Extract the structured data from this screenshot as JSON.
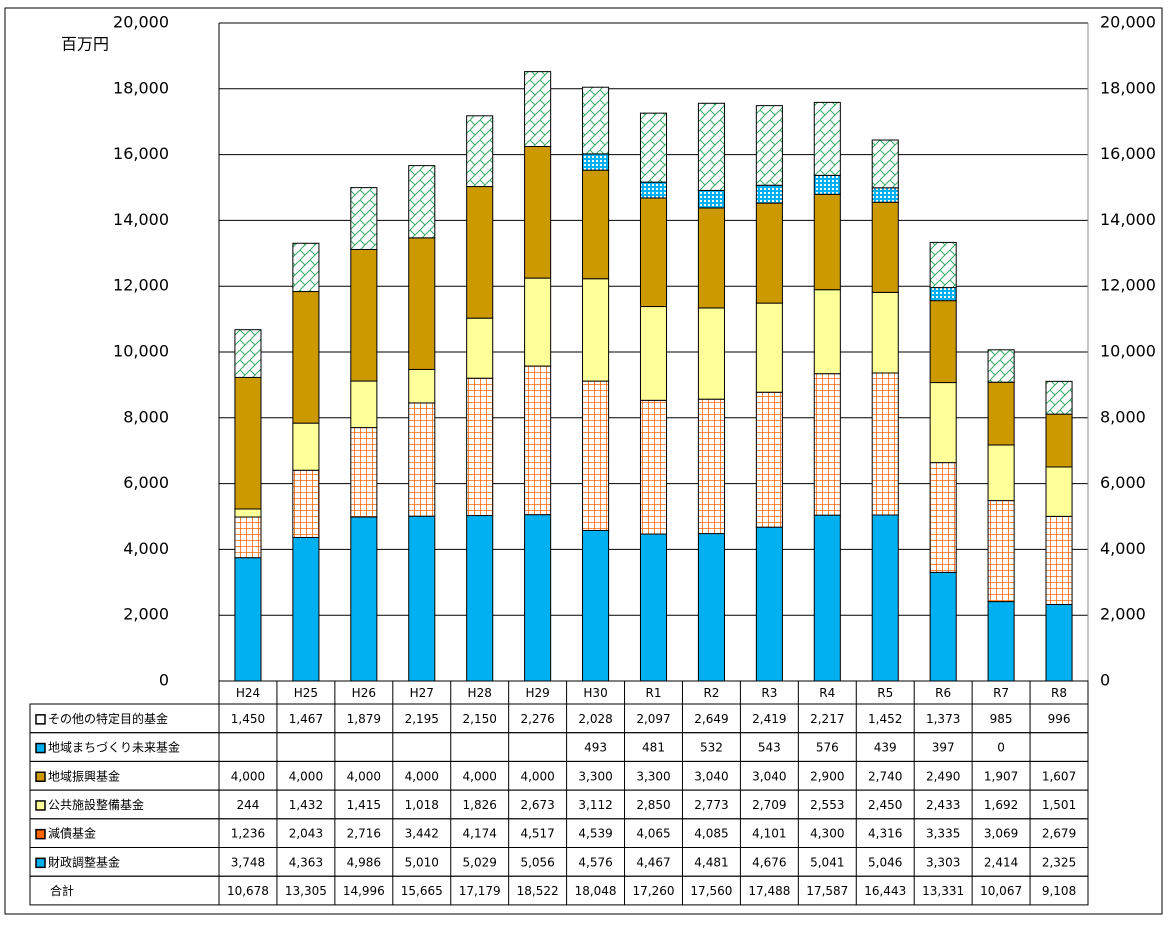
{
  "chart_data": {
    "type": "stacked-bar",
    "y_label": "百万円",
    "categories": [
      "H24",
      "H25",
      "H26",
      "H27",
      "H28",
      "H29",
      "H30",
      "R1",
      "R2",
      "R3",
      "R4",
      "R5",
      "R6",
      "R7",
      "R8"
    ],
    "ylim": [
      0,
      20000
    ],
    "yticks": [
      0,
      {
        "value": 2000,
        "label": "2,000"
      },
      {
        "value": 4000,
        "label": "4,000"
      },
      {
        "value": 6000,
        "label": "6,000"
      },
      {
        "value": 8000,
        "label": "8,000"
      },
      {
        "value": 10000,
        "label": "10,000"
      },
      {
        "value": 12000,
        "label": "12,000"
      },
      {
        "value": 14000,
        "label": "14,000"
      },
      {
        "value": 16000,
        "label": "16,000"
      },
      {
        "value": 18000,
        "label": "18,000"
      },
      {
        "value": 20000,
        "label": "20,000"
      }
    ],
    "grid": true,
    "series": [
      {
        "name": "財政調整基金",
        "color": "#00b0f0",
        "hatch": "none",
        "values": [
          3748,
          4363,
          4986,
          5010,
          5029,
          5056,
          4576,
          4467,
          4481,
          4676,
          5041,
          5046,
          3303,
          2414,
          2325
        ],
        "value_labels": [
          "3,748",
          "4,363",
          "4,986",
          "5,010",
          "5,029",
          "5,056",
          "4,576",
          "4,467",
          "4,481",
          "4,676",
          "5,041",
          "5,046",
          "3,303",
          "2,414",
          "2,325"
        ]
      },
      {
        "name": "減債基金",
        "color": "#ff6600",
        "hatch": "grid",
        "values": [
          1236,
          2043,
          2716,
          3442,
          4174,
          4517,
          4539,
          4065,
          4085,
          4101,
          4300,
          4316,
          3335,
          3069,
          2679
        ],
        "value_labels": [
          "1,236",
          "2,043",
          "2,716",
          "3,442",
          "4,174",
          "4,517",
          "4,539",
          "4,065",
          "4,085",
          "4,101",
          "4,300",
          "4,316",
          "3,335",
          "3,069",
          "2,679"
        ]
      },
      {
        "name": "公共施設整備基金",
        "color": "#ffff99",
        "hatch": "none",
        "values": [
          244,
          1432,
          1415,
          1018,
          1826,
          2673,
          3112,
          2850,
          2773,
          2709,
          2553,
          2450,
          2433,
          1692,
          1501
        ],
        "value_labels": [
          "244",
          "1,432",
          "1,415",
          "1,018",
          "1,826",
          "2,673",
          "3,112",
          "2,850",
          "2,773",
          "2,709",
          "2,553",
          "2,450",
          "2,433",
          "1,692",
          "1,501"
        ]
      },
      {
        "name": "地域振興基金",
        "color": "#cc9900",
        "hatch": "none",
        "values": [
          4000,
          4000,
          4000,
          4000,
          4000,
          4000,
          3300,
          3300,
          3040,
          3040,
          2900,
          2740,
          2490,
          1907,
          1607
        ],
        "value_labels": [
          "4,000",
          "4,000",
          "4,000",
          "4,000",
          "4,000",
          "4,000",
          "3,300",
          "3,300",
          "3,040",
          "3,040",
          "2,900",
          "2,740",
          "2,490",
          "1,907",
          "1,607"
        ]
      },
      {
        "name": "地域まちづくり未来基金",
        "color": "#0099cc",
        "hatch": "dots",
        "values": [
          null,
          null,
          null,
          null,
          null,
          null,
          493,
          481,
          532,
          543,
          576,
          439,
          397,
          0,
          null
        ],
        "value_labels": [
          null,
          null,
          null,
          null,
          null,
          null,
          "493",
          "481",
          "532",
          "543",
          "576",
          "439",
          "397",
          "0",
          null
        ]
      },
      {
        "name": "その他の特定目的基金",
        "color": "#33aa66",
        "hatch": "diag",
        "values": [
          1450,
          1467,
          1879,
          2195,
          2150,
          2276,
          2028,
          2097,
          2649,
          2419,
          2217,
          1452,
          1373,
          985,
          996
        ],
        "value_labels": [
          "1,450",
          "1,467",
          "1,879",
          "2,195",
          "2,150",
          "2,276",
          "2,028",
          "2,097",
          "2,649",
          "2,419",
          "2,217",
          "1,452",
          "1,373",
          "985",
          "996"
        ]
      }
    ],
    "total": {
      "name": "合計",
      "value_labels": [
        "10,678",
        "13,305",
        "14,996",
        "15,665",
        "17,179",
        "18,522",
        "18,048",
        "17,260",
        "17,560",
        "17,488",
        "17,587",
        "16,443",
        "13,331",
        "10,067",
        "9,108"
      ]
    }
  }
}
